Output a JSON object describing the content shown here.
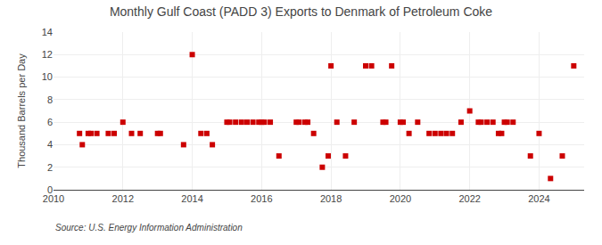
{
  "chart_data": {
    "type": "scatter",
    "title": "Monthly Gulf Coast (PADD 3) Exports to Denmark of Petroleum Coke",
    "ylabel": "Thousand Barrels per Day",
    "annotations": [
      "Source: U.S. Energy Information Administration"
    ],
    "color": "#cc0000",
    "marker": "square",
    "grid": true,
    "xlim": [
      2010.0,
      2025.3
    ],
    "xticks": [
      2010,
      2012,
      2014,
      2016,
      2018,
      2020,
      2022,
      2024
    ],
    "ylim": [
      0,
      14
    ],
    "yticks": [
      0,
      2,
      4,
      6,
      8,
      10,
      12,
      14
    ],
    "x": [
      2010.75,
      2010.83,
      2011.0,
      2011.08,
      2011.25,
      2011.58,
      2011.75,
      2012.0,
      2012.25,
      2012.5,
      2013.0,
      2013.08,
      2013.75,
      2014.0,
      2014.25,
      2014.42,
      2014.58,
      2015.0,
      2015.08,
      2015.25,
      2015.42,
      2015.58,
      2015.75,
      2015.92,
      2016.0,
      2016.08,
      2016.25,
      2016.5,
      2017.0,
      2017.08,
      2017.25,
      2017.33,
      2017.5,
      2017.75,
      2017.92,
      2018.0,
      2018.17,
      2018.42,
      2018.67,
      2019.0,
      2019.17,
      2019.5,
      2019.58,
      2019.75,
      2020.0,
      2020.08,
      2020.25,
      2020.5,
      2020.83,
      2021.0,
      2021.17,
      2021.33,
      2021.5,
      2021.75,
      2022.0,
      2022.25,
      2022.33,
      2022.5,
      2022.67,
      2022.83,
      2022.92,
      2023.0,
      2023.08,
      2023.25,
      2023.75,
      2024.0,
      2024.33,
      2024.67,
      2025.0
    ],
    "values": [
      5,
      4,
      5,
      5,
      5,
      5,
      5,
      6,
      5,
      5,
      5,
      5,
      4,
      12,
      5,
      5,
      4,
      6,
      6,
      6,
      6,
      6,
      6,
      6,
      6,
      6,
      6,
      3,
      6,
      6,
      6,
      6,
      5,
      2,
      3,
      11,
      6,
      3,
      6,
      11,
      11,
      6,
      6,
      11,
      6,
      6,
      5,
      6,
      5,
      5,
      5,
      5,
      5,
      6,
      7,
      6,
      6,
      6,
      6,
      5,
      5,
      6,
      6,
      6,
      3,
      5,
      1,
      3,
      11
    ]
  }
}
